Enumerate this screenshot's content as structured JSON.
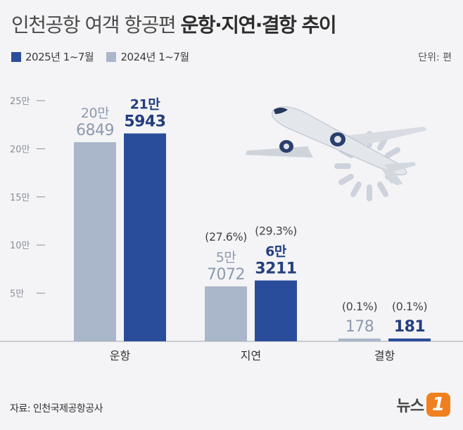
{
  "title": {
    "regular": "인천공항 여객 항공편",
    "bold": "운항·지연·결항 추이"
  },
  "legend": [
    {
      "label": "2025년 1~7월",
      "color": "#2a4d9b"
    },
    {
      "label": "2024년 1~7월",
      "color": "#aab6c9"
    }
  ],
  "unit": "단위: 편",
  "source": "자료: 인천국제공항공사",
  "logo": {
    "word": "뉴스",
    "mark": "1"
  },
  "icons": [
    "airplane-icon",
    "loading-spinner-icon"
  ],
  "chart_data": {
    "type": "bar",
    "categories": [
      "운항",
      "지연",
      "결항"
    ],
    "ylim": [
      0,
      250000
    ],
    "yticks": [
      {
        "value": 50000,
        "label": "5만"
      },
      {
        "value": 100000,
        "label": "10만"
      },
      {
        "value": 150000,
        "label": "15만"
      },
      {
        "value": 200000,
        "label": "20만"
      },
      {
        "value": 250000,
        "label": "25만"
      }
    ],
    "series": [
      {
        "name": "2024년 1~7월",
        "color": "#aab6c9",
        "label_color": "#8e9aae",
        "values": [
          206849,
          57072,
          178
        ],
        "labels": [
          [
            "20만",
            "6849"
          ],
          [
            "5만",
            "7072"
          ],
          [
            "178"
          ]
        ],
        "rates": [
          "",
          "(27.6%)",
          "(0.1%)"
        ]
      },
      {
        "name": "2025년 1~7월",
        "color": "#2a4d9b",
        "label_color": "#243f7f",
        "values": [
          215943,
          63211,
          181
        ],
        "labels": [
          [
            "21만",
            "5943"
          ],
          [
            "6만",
            "3211"
          ],
          [
            "181"
          ]
        ],
        "rates": [
          "",
          "(29.3%)",
          "(0.1%)"
        ]
      }
    ]
  }
}
